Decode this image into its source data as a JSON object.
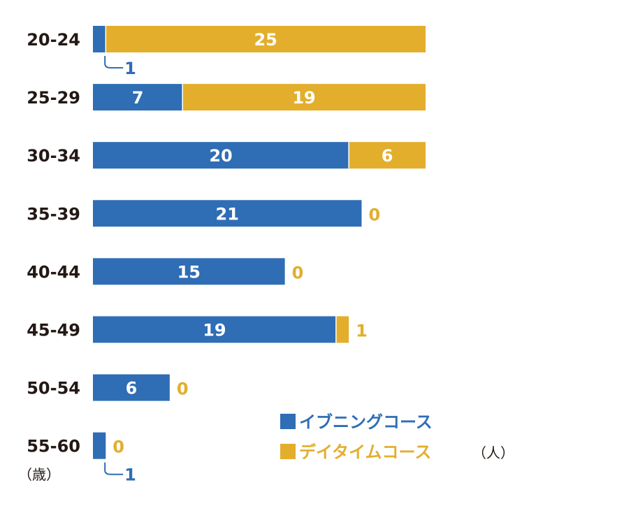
{
  "chart_data": {
    "type": "bar",
    "orientation": "horizontal",
    "stacked": true,
    "categories": [
      "20-24",
      "25-29",
      "30-34",
      "35-39",
      "40-44",
      "45-49",
      "50-54",
      "55-60"
    ],
    "series": [
      {
        "name": "イブニングコース",
        "color": "#2f6db5",
        "values": [
          1,
          7,
          20,
          21,
          15,
          19,
          6,
          1
        ]
      },
      {
        "name": "デイタイムコース",
        "color": "#e2ae2c",
        "values": [
          25,
          19,
          6,
          0,
          0,
          1,
          0,
          0
        ]
      }
    ],
    "xlim": [
      0,
      26
    ],
    "category_unit": "（歳）",
    "value_unit": "（人）",
    "grid": false,
    "legend_position": "bottom-right"
  },
  "colors": {
    "evening": "#2f6db5",
    "daytime": "#e2ae2c",
    "text": "#231815"
  }
}
